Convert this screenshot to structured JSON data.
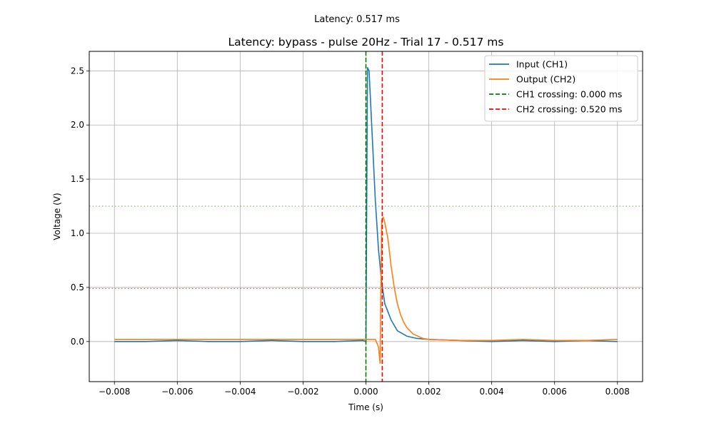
{
  "suptitle": "Latency: 0.517 ms",
  "chart_data": {
    "type": "line",
    "title": "Latency: bypass - pulse 20Hz - Trial 17 - 0.517 ms",
    "xlabel": "Time (s)",
    "ylabel": "Voltage (V)",
    "xlim": [
      -0.0088,
      0.0088
    ],
    "ylim": [
      -0.37,
      2.68
    ],
    "x_ticks": [
      -0.008,
      -0.006,
      -0.004,
      -0.002,
      0.0,
      0.002,
      0.004,
      0.006,
      0.008
    ],
    "x_tick_labels": [
      "−0.008",
      "−0.006",
      "−0.004",
      "−0.002",
      "0.000",
      "0.002",
      "0.004",
      "0.006",
      "0.008"
    ],
    "y_ticks": [
      0.0,
      0.5,
      1.0,
      1.5,
      2.0,
      2.5
    ],
    "y_tick_labels": [
      "0.0",
      "0.5",
      "1.0",
      "1.5",
      "2.0",
      "2.5"
    ],
    "grid": true,
    "legend_position": "top-right",
    "series": [
      {
        "name": "Input (CH1)",
        "color": "#1f77b4",
        "x": [
          -0.008,
          -0.007,
          -0.006,
          -0.005,
          -0.004,
          -0.003,
          -0.002,
          -0.001,
          -0.0001,
          0.0,
          5e-05,
          0.0001,
          0.0002,
          0.0003,
          0.0004,
          0.0005,
          0.0006,
          0.0008,
          0.001,
          0.0013,
          0.0016,
          0.002,
          0.003,
          0.004,
          0.005,
          0.006,
          0.007,
          0.008
        ],
        "y": [
          0.0,
          0.0,
          0.01,
          0.0,
          0.0,
          0.01,
          0.0,
          0.0,
          0.01,
          0.0,
          2.53,
          2.5,
          1.9,
          1.3,
          0.85,
          0.55,
          0.35,
          0.2,
          0.1,
          0.05,
          0.03,
          0.02,
          0.01,
          0.0,
          0.01,
          0.0,
          0.01,
          0.0
        ]
      },
      {
        "name": "Output (CH2)",
        "color": "#ff7f0e",
        "x": [
          -0.008,
          -0.007,
          -0.006,
          -0.005,
          -0.004,
          -0.003,
          -0.002,
          -0.001,
          0.0,
          0.0003,
          0.0004,
          0.00045,
          0.0005,
          0.00055,
          0.0006,
          0.0007,
          0.0008,
          0.0009,
          0.001,
          0.0011,
          0.0012,
          0.0013,
          0.0015,
          0.0018,
          0.002,
          0.003,
          0.004,
          0.005,
          0.006,
          0.007,
          0.008
        ],
        "y": [
          0.02,
          0.02,
          0.02,
          0.02,
          0.02,
          0.02,
          0.02,
          0.02,
          0.02,
          0.02,
          -0.05,
          -0.2,
          1.12,
          1.15,
          1.1,
          0.95,
          0.7,
          0.5,
          0.35,
          0.25,
          0.18,
          0.13,
          0.07,
          0.03,
          0.02,
          0.01,
          0.01,
          0.02,
          0.01,
          0.01,
          0.02
        ]
      }
    ],
    "vlines": [
      {
        "name": "CH1 crossing: 0.000 ms",
        "x": 0.0,
        "color": "#008000",
        "style": "dashed"
      },
      {
        "name": "CH2 crossing: 0.520 ms",
        "x": 0.00052,
        "color": "#ff0000",
        "style": "dashed"
      }
    ],
    "hlines": [
      {
        "y": 1.25,
        "color": "#2ca02c",
        "style": "dotted"
      },
      {
        "y": 0.49,
        "color": "#d62728",
        "style": "dotted"
      }
    ]
  }
}
